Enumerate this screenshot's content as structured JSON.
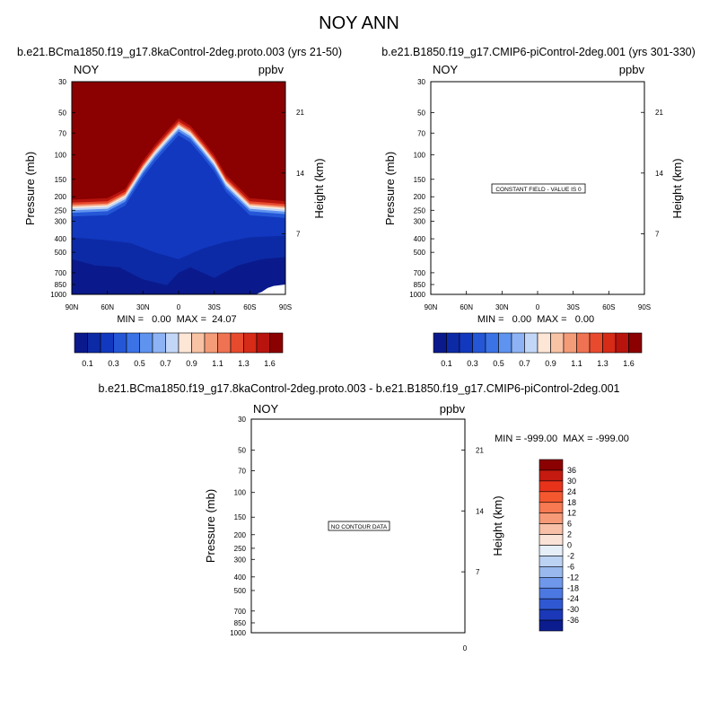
{
  "page_title": "NOY ANN",
  "panels": [
    {
      "title": "b.e21.BCma1850.f19_g17.8kaControl-2deg.proto.003 (yrs 21-50)",
      "var_label": "NOY",
      "units": "ppbv",
      "left_axis_label": "Pressure (mb)",
      "right_axis_label": "Height (km)",
      "stats": "MIN =   0.00  MAX =  24.07"
    },
    {
      "title": "b.e21.B1850.f19_g17.CMIP6-piControl-2deg.001 (yrs 301-330)",
      "var_label": "NOY",
      "units": "ppbv",
      "left_axis_label": "Pressure (mb)",
      "right_axis_label": "Height (km)",
      "stats": "MIN =   0.00  MAX =   0.00",
      "message": "CONSTANT FIELD - VALUE IS 0"
    },
    {
      "title": "b.e21.BCma1850.f19_g17.8kaControl-2deg.proto.003 - b.e21.B1850.f19_g17.CMIP6-piControl-2deg.001",
      "var_label": "NOY",
      "units": "ppbv",
      "left_axis_label": "Pressure (mb)",
      "right_axis_label": "Height (km)",
      "stats": "MIN = -999.00  MAX = -999.00",
      "message": "NO CONTOUR DATA",
      "x_tick": "0"
    }
  ],
  "chart_data": [
    {
      "type": "heatmap",
      "title": "b.e21.BCma1850.f19_g17.8kaControl-2deg.proto.003 (yrs 21-50)",
      "variable": "NOY",
      "units": "ppbv",
      "xlabel": "",
      "ylabel": "Pressure (mb)",
      "y2label": "Height (km)",
      "x_ticks": [
        "90N",
        "60N",
        "30N",
        "0",
        "30S",
        "60S",
        "90S"
      ],
      "x_values": [
        90,
        60,
        30,
        0,
        -30,
        -60,
        -90
      ],
      "y_ticks": [
        "30",
        "50",
        "70",
        "100",
        "150",
        "200",
        "250",
        "300",
        "400",
        "500",
        "700",
        "850",
        "1000"
      ],
      "y_values": [
        30,
        50,
        70,
        100,
        150,
        200,
        250,
        300,
        400,
        500,
        700,
        850,
        1000
      ],
      "y_log": true,
      "ylim": [
        1000,
        30
      ],
      "y2_ticks": [
        "7",
        "14",
        "21"
      ],
      "y2_values": [
        7,
        14,
        21
      ],
      "min": 0.0,
      "max": 24.07,
      "threshold_contour_pressure": [
        {
          "lat": 90,
          "p": 210
        },
        {
          "lat": 60,
          "p": 205
        },
        {
          "lat": 45,
          "p": 175
        },
        {
          "lat": 30,
          "p": 110
        },
        {
          "lat": 20,
          "p": 85
        },
        {
          "lat": 10,
          "p": 68
        },
        {
          "lat": 0,
          "p": 55
        },
        {
          "lat": -10,
          "p": 62
        },
        {
          "lat": -20,
          "p": 78
        },
        {
          "lat": -30,
          "p": 100
        },
        {
          "lat": -40,
          "p": 140
        },
        {
          "lat": -60,
          "p": 205
        },
        {
          "lat": -90,
          "p": 215
        }
      ]
    },
    {
      "type": "heatmap",
      "title": "b.e21.B1850.f19_g17.CMIP6-piControl-2deg.001 (yrs 301-330)",
      "variable": "NOY",
      "units": "ppbv",
      "xlabel": "",
      "ylabel": "Pressure (mb)",
      "y2label": "Height (km)",
      "x_ticks": [
        "90N",
        "60N",
        "30N",
        "0",
        "30S",
        "60S",
        "90S"
      ],
      "y_ticks": [
        "30",
        "50",
        "70",
        "100",
        "150",
        "200",
        "250",
        "300",
        "400",
        "500",
        "700",
        "850",
        "1000"
      ],
      "y_log": true,
      "y2_ticks": [
        "7",
        "14",
        "21"
      ],
      "min": 0.0,
      "max": 0.0,
      "constant_value": 0
    },
    {
      "type": "heatmap",
      "title": "b.e21.BCma1850.f19_g17.8kaControl-2deg.proto.003 - b.e21.B1850.f19_g17.CMIP6-piControl-2deg.001",
      "variable": "NOY",
      "units": "ppbv",
      "xlabel": "",
      "ylabel": "Pressure (mb)",
      "y2label": "Height (km)",
      "x_ticks": [
        "0"
      ],
      "y_ticks": [
        "30",
        "50",
        "70",
        "100",
        "150",
        "200",
        "250",
        "300",
        "400",
        "500",
        "700",
        "850",
        "1000"
      ],
      "y_log": true,
      "y2_ticks": [
        "7",
        "14",
        "21"
      ],
      "min": -999.0,
      "max": -999.0
    }
  ],
  "colorbar_top": {
    "labels": [
      "0.1",
      "0.3",
      "0.5",
      "0.7",
      "0.9",
      "1.1",
      "1.3",
      "1.6"
    ],
    "colors": [
      "#0a1a8c",
      "#0d2aa6",
      "#1238bf",
      "#2456d6",
      "#3b73e6",
      "#5e93f0",
      "#8db3f5",
      "#c2d6f7",
      "#fde6d6",
      "#f8c2a4",
      "#f49b78",
      "#ef7352",
      "#e84a2e",
      "#d62b17",
      "#b8140d",
      "#8b0000"
    ]
  },
  "colorbar_diff": {
    "labels": [
      "36",
      "30",
      "24",
      "18",
      "12",
      "6",
      "2",
      "0",
      "-2",
      "-6",
      "-12",
      "-18",
      "-24",
      "-30",
      "-36"
    ],
    "colors": [
      "#8b0000",
      "#c41a0f",
      "#e8331a",
      "#f5582f",
      "#f77a52",
      "#f79a78",
      "#f8c0a6",
      "#fbe2d6",
      "#e6eef8",
      "#bcd2f2",
      "#98b8ee",
      "#6f98ea",
      "#4c78e2",
      "#2f58d2",
      "#1a38b8",
      "#0b1d8e"
    ]
  },
  "colors": {
    "high": "#8b0000",
    "low": "#0a1a8c"
  }
}
